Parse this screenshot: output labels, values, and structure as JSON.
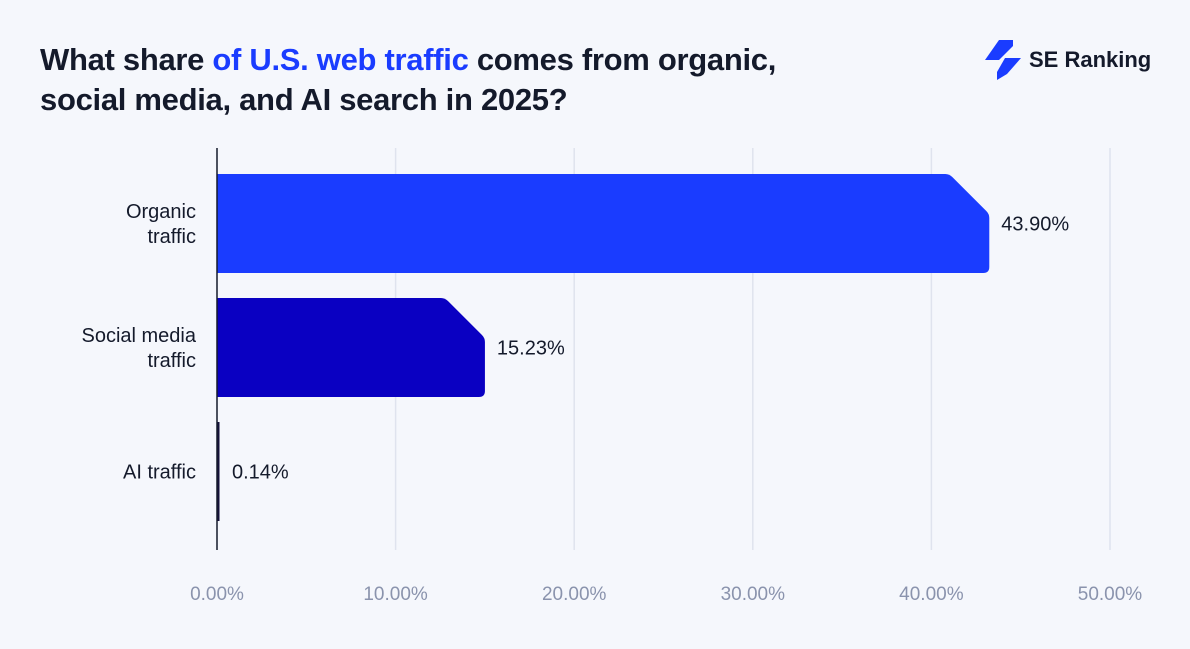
{
  "title": {
    "part1": "What share ",
    "highlight": "of U.S. web traffic",
    "part2": " comes from organic,",
    "line2": "social media, and AI search in 2025?"
  },
  "logo": {
    "text": "SE Ranking"
  },
  "colors": {
    "organic": "#1a3cff",
    "social": "#0a00c2",
    "ai": "#14103a",
    "grid": "#dfe3ee",
    "accent": "#1a3cff"
  },
  "chart_data": {
    "type": "bar",
    "orientation": "horizontal",
    "title": "What share of U.S. web traffic comes from organic, social media, and AI search in 2025?",
    "categories": [
      [
        "Organic",
        "traffic"
      ],
      [
        "Social media",
        "traffic"
      ],
      [
        "AI traffic"
      ]
    ],
    "values": [
      43.9,
      15.23,
      0.14
    ],
    "value_labels": [
      "43.90%",
      "15.23%",
      "0.14%"
    ],
    "xlim": [
      0,
      50
    ],
    "xticks": [
      0,
      10,
      20,
      30,
      40,
      50
    ],
    "xtick_labels": [
      "0.00%",
      "10.00%",
      "20.00%",
      "30.00%",
      "40.00%",
      "50.00%"
    ],
    "grid": true
  }
}
